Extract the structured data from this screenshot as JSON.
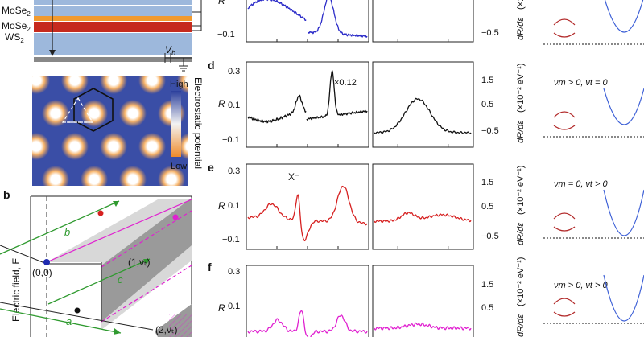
{
  "panel_letters": {
    "d": "d",
    "e": "e",
    "f": "f",
    "b": "b"
  },
  "device": {
    "layers": [
      "MoSe2",
      "MoSe2",
      "WS2"
    ],
    "gate_label": "V",
    "gate_sub": "b"
  },
  "map": {
    "colorbar_title": "Electrostatic potential",
    "high": "High",
    "low": "Low"
  },
  "phase": {
    "ylabel": "Electric field, E",
    "origin": "(0,0)",
    "arrow_labels": [
      "a",
      "b",
      "c"
    ],
    "region1": "(1,νₜ)",
    "region2": "(2,νₜ)"
  },
  "spectra": {
    "R_label": "R",
    "ticks_left_top": [
      "−0.1"
    ],
    "ticks_left": [
      "0.3",
      "0.1",
      "−0.1"
    ],
    "ticks_right": [
      "1.5",
      "0.5",
      "−0.5"
    ],
    "ticks_right_top": [
      "−0.5"
    ],
    "deriv_label": "dR/dε",
    "deriv_units": "(×10⁻² eV⁻¹)",
    "scale_note": "×0.12",
    "exciton_label": "X⁻"
  },
  "bands": {
    "d_title": "νm > 0, νt = 0",
    "e_title": "νm = 0, νt > 0",
    "f_title": "νm > 0, νt > 0"
  },
  "colors": {
    "blue": "#2b2bc8",
    "black": "#111111",
    "red": "#d62020",
    "magenta": "#e020d0",
    "band_red": "#b22a2a",
    "band_blue": "#3c5fd6",
    "layer_blue": "#9db8dc",
    "layer_red": "#c62a1e",
    "layer_orange": "#f29a2e",
    "green": "#2f9a2f"
  }
}
